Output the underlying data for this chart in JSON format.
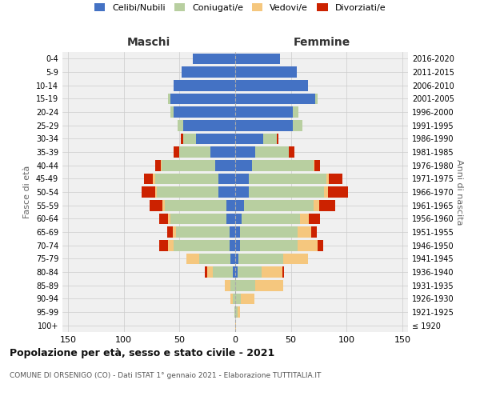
{
  "age_groups": [
    "100+",
    "95-99",
    "90-94",
    "85-89",
    "80-84",
    "75-79",
    "70-74",
    "65-69",
    "60-64",
    "55-59",
    "50-54",
    "45-49",
    "40-44",
    "35-39",
    "30-34",
    "25-29",
    "20-24",
    "15-19",
    "10-14",
    "5-9",
    "0-4"
  ],
  "birth_years": [
    "≤ 1920",
    "1921-1925",
    "1926-1930",
    "1931-1935",
    "1936-1940",
    "1941-1945",
    "1946-1950",
    "1951-1955",
    "1956-1960",
    "1961-1965",
    "1966-1970",
    "1971-1975",
    "1976-1980",
    "1981-1985",
    "1986-1990",
    "1991-1995",
    "1996-2000",
    "2001-2005",
    "2006-2010",
    "2011-2015",
    "2016-2020"
  ],
  "maschi": {
    "celibi": [
      0,
      0,
      0,
      0,
      2,
      4,
      5,
      5,
      8,
      8,
      15,
      15,
      18,
      22,
      35,
      47,
      55,
      58,
      55,
      48,
      38
    ],
    "coniugati": [
      0,
      1,
      2,
      4,
      18,
      28,
      50,
      48,
      50,
      55,
      55,
      57,
      48,
      28,
      12,
      5,
      3,
      2,
      0,
      0,
      0
    ],
    "vedovi": [
      0,
      0,
      2,
      5,
      5,
      12,
      5,
      3,
      2,
      2,
      2,
      2,
      1,
      0,
      0,
      0,
      0,
      0,
      0,
      0,
      0
    ],
    "divorziati": [
      0,
      0,
      0,
      0,
      2,
      0,
      8,
      5,
      8,
      12,
      12,
      8,
      5,
      5,
      2,
      0,
      0,
      0,
      0,
      0,
      0
    ]
  },
  "femmine": {
    "nubili": [
      0,
      0,
      0,
      0,
      2,
      3,
      4,
      4,
      6,
      8,
      12,
      12,
      15,
      18,
      25,
      52,
      52,
      72,
      65,
      55,
      40
    ],
    "coniugate": [
      0,
      2,
      5,
      18,
      22,
      40,
      52,
      52,
      52,
      62,
      68,
      70,
      55,
      30,
      12,
      8,
      5,
      2,
      0,
      0,
      0
    ],
    "vedove": [
      1,
      2,
      12,
      25,
      18,
      22,
      18,
      12,
      8,
      5,
      3,
      2,
      1,
      0,
      0,
      0,
      0,
      0,
      0,
      0,
      0
    ],
    "divorziate": [
      0,
      0,
      0,
      0,
      2,
      0,
      5,
      5,
      10,
      15,
      18,
      12,
      5,
      5,
      2,
      0,
      0,
      0,
      0,
      0,
      0
    ]
  },
  "colors": {
    "celibi": "#4472c4",
    "coniugati": "#b8cfa0",
    "vedovi": "#f5c77e",
    "divorziati": "#cc2200"
  },
  "xlim": 155,
  "title": "Popolazione per età, sesso e stato civile - 2021",
  "subtitle": "COMUNE DI ORSENIGO (CO) - Dati ISTAT 1° gennaio 2021 - Elaborazione TUTTITALIA.IT",
  "legend_labels": [
    "Celibi/Nubili",
    "Coniugati/e",
    "Vedovi/e",
    "Divorziati/e"
  ],
  "xlabel_left": "Maschi",
  "xlabel_right": "Femmine",
  "ylabel_left": "Fasce di età",
  "ylabel_right": "Anni di nascita",
  "bg_color": "#f0f0f0"
}
